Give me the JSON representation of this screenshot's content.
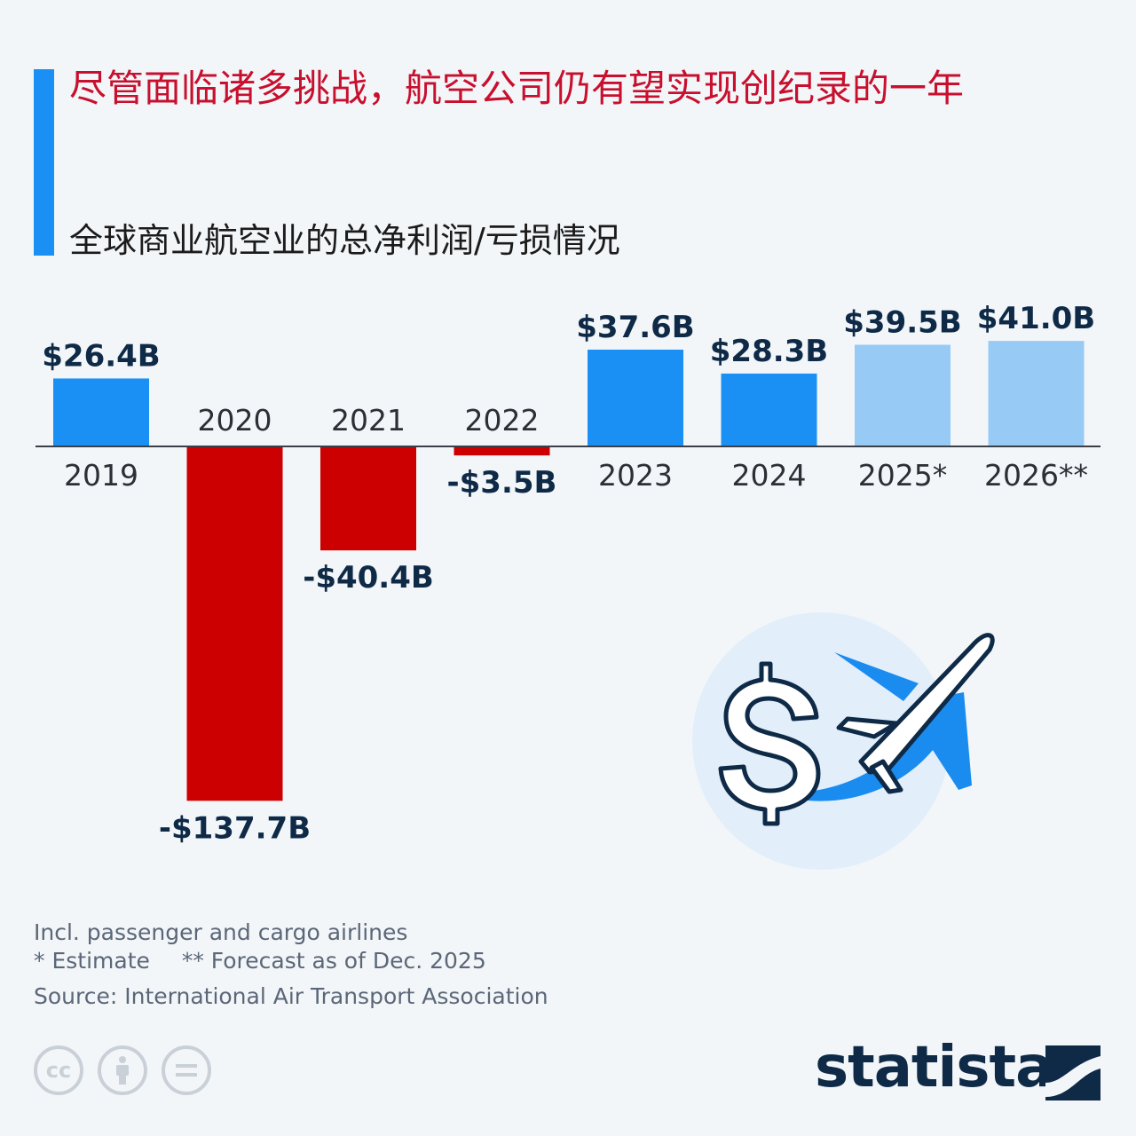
{
  "header": {
    "title": "尽管面临诸多挑战，航空公司仍有望实现创纪录的一年",
    "subtitle": "全球商业航空业的总净利润/亏损情况"
  },
  "colors": {
    "accent": "#1a90f5",
    "negative": "#cc0000",
    "forecast": "#97cbf6",
    "title": "#c8102e",
    "brand": "#0e2a47"
  },
  "chart_data": {
    "type": "bar",
    "unit": "B",
    "categories": [
      "2019",
      "2020",
      "2021",
      "2022",
      "2023",
      "2024",
      "2025*",
      "2026**"
    ],
    "values": [
      26.4,
      -137.7,
      -40.4,
      -3.5,
      37.6,
      28.3,
      39.5,
      41.0
    ],
    "value_labels": [
      "$26.4B",
      "-$137.7B",
      "-$40.4B",
      "-$3.5B",
      "$37.6B",
      "$28.3B",
      "$39.5B",
      "$41.0B"
    ],
    "projected": [
      false,
      false,
      false,
      false,
      false,
      false,
      true,
      true
    ],
    "ylim": [
      -137.7,
      41.0
    ],
    "grid": false,
    "legend": "none"
  },
  "footer": {
    "note_1": "Incl. passenger and cargo airlines",
    "note_estimate": "* Estimate",
    "note_forecast": "** Forecast as of Dec. 2025",
    "source": "Source: International Air Transport Association",
    "brand": "statista",
    "license_icons": [
      "cc-icon",
      "attribution-icon",
      "no-derivatives-icon"
    ]
  },
  "illustration": {
    "icons": [
      "dollar-icon",
      "airplane-icon"
    ]
  }
}
